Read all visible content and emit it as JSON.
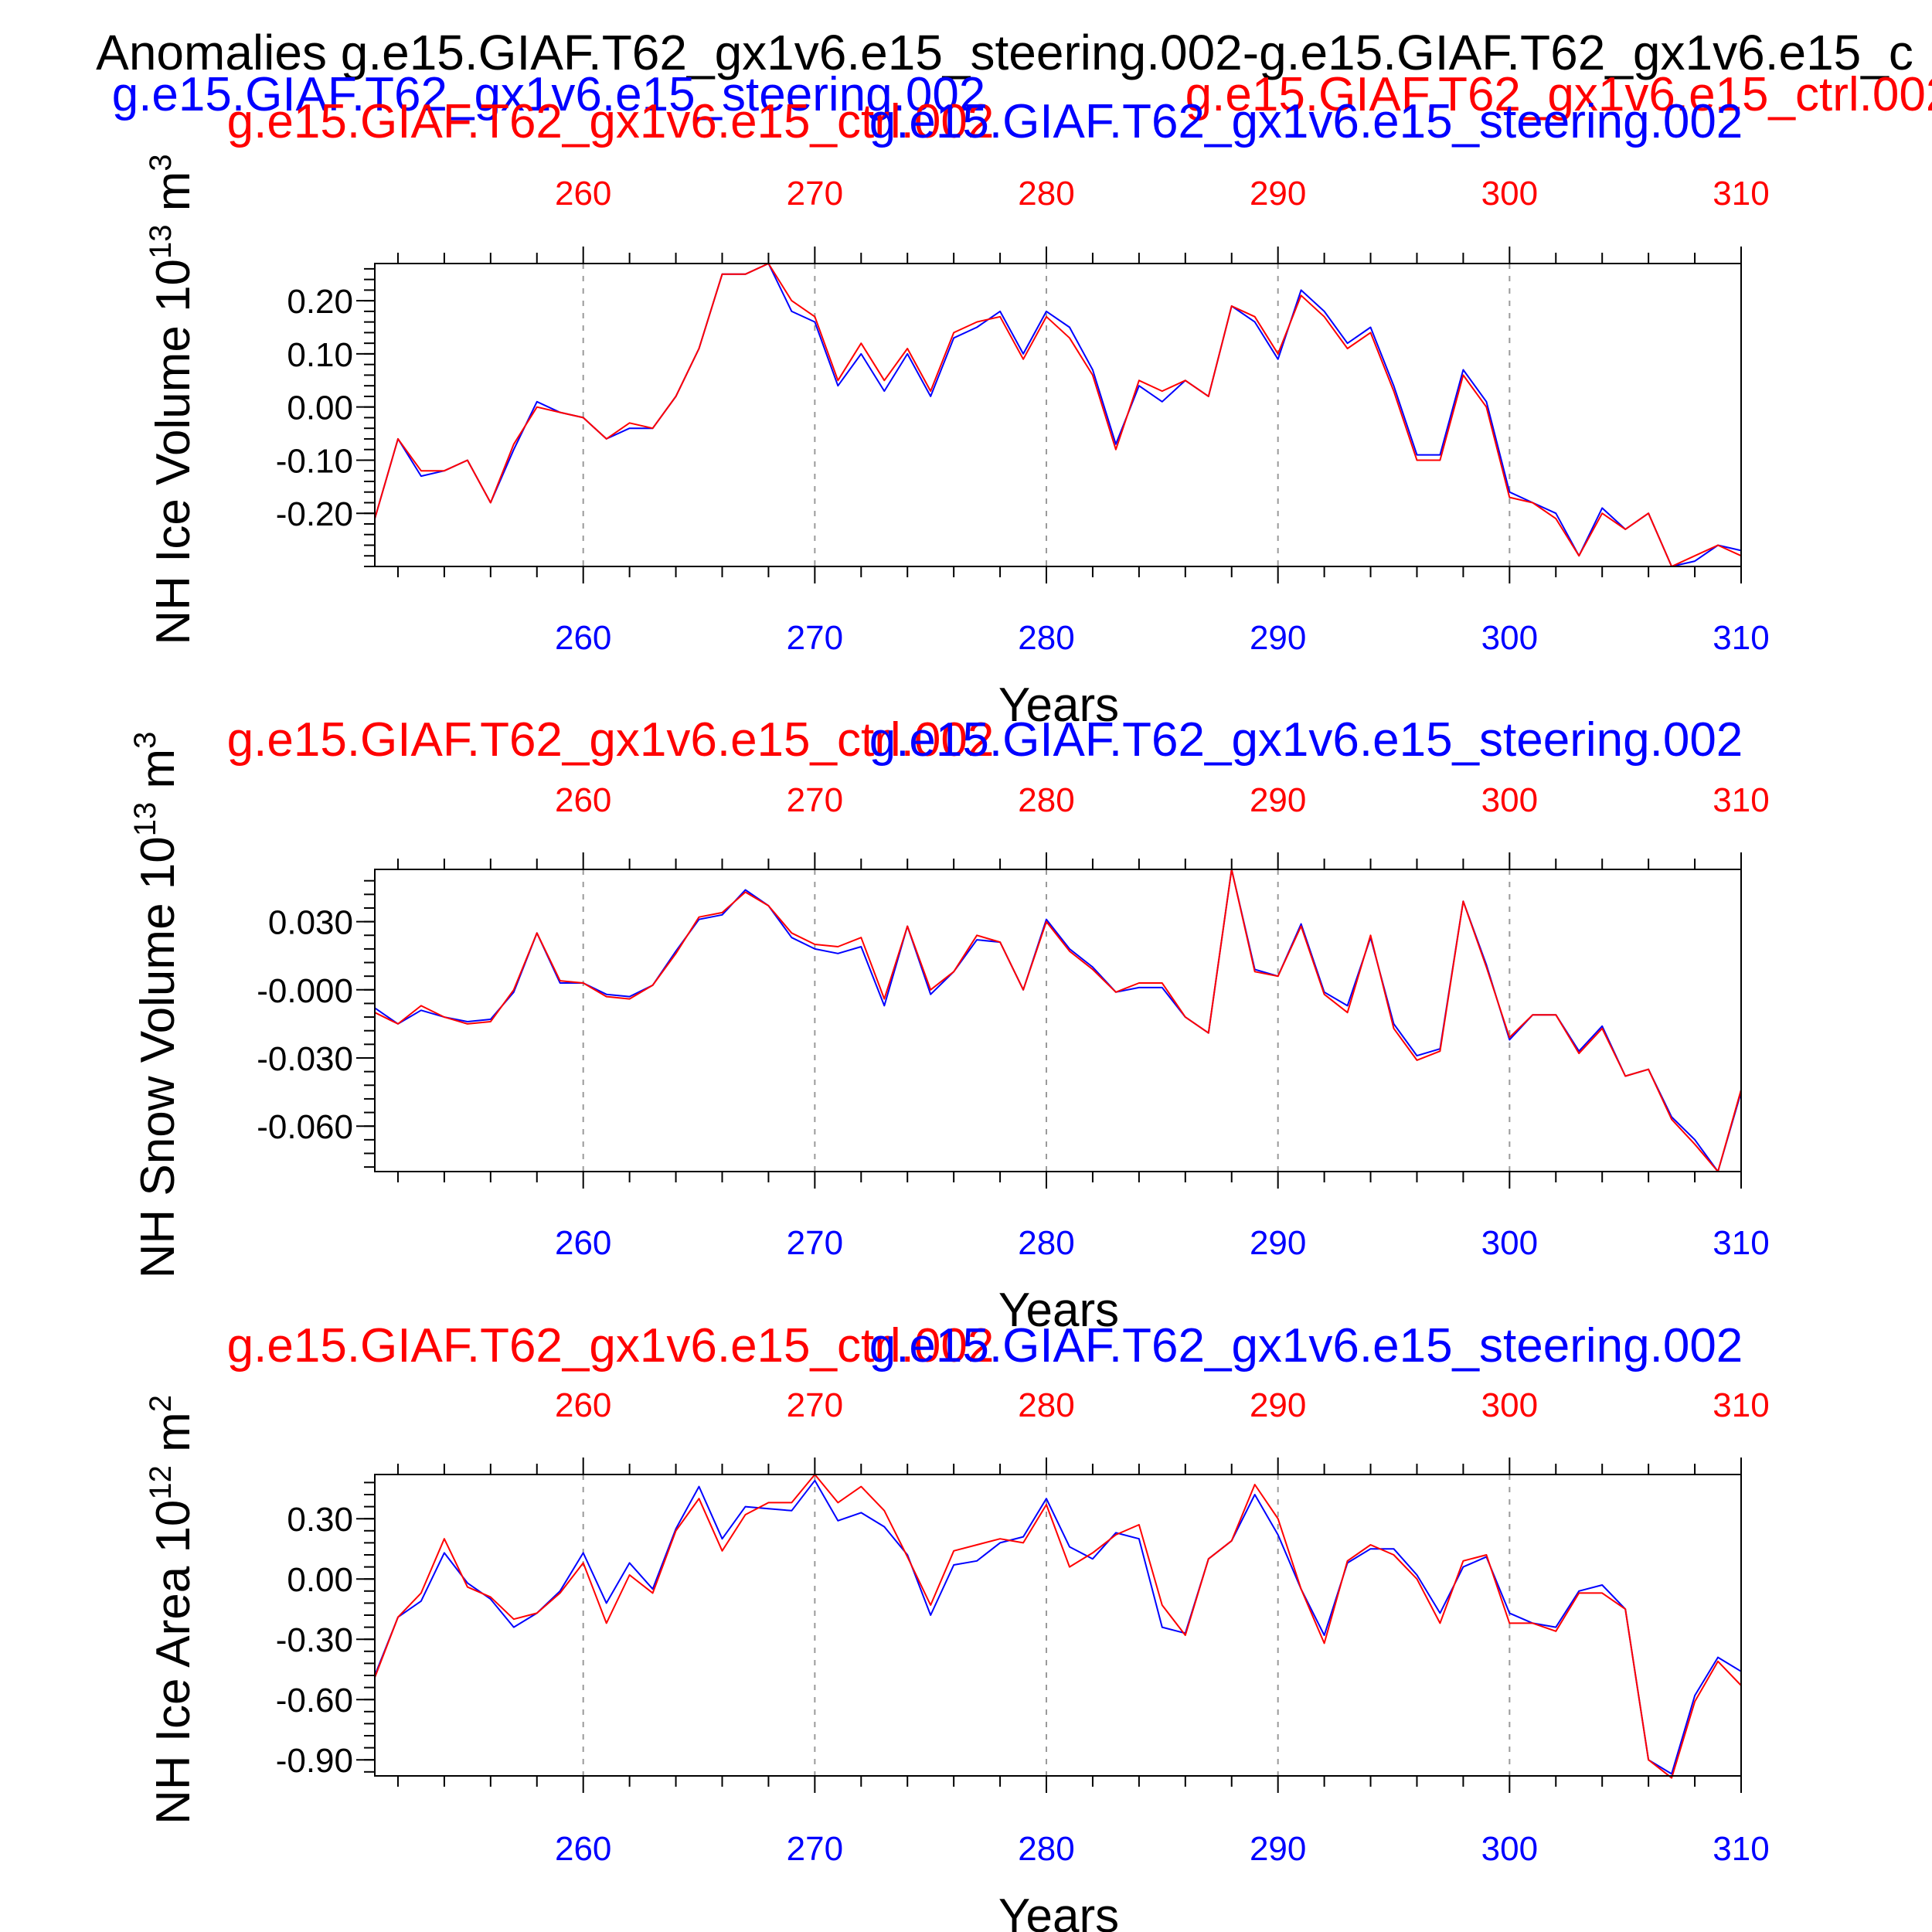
{
  "chart_data": {
    "title": "Anomalies g.e15.GIAF.T62_gx1v6.e15_steering.002-g.e15.GIAF.T62_gx1v6.e15_c",
    "legend": {
      "steering": "g.e15.GIAF.T62_gx1v6.e15_steering.002",
      "ctrl": "g.e15.GIAF.T62_gx1v6.e15_ctrl.002"
    },
    "colors": {
      "steering": "#0000ff",
      "ctrl": "#ff0000",
      "axes": "#000000",
      "grid": "#9a9a9a"
    },
    "panels": [
      {
        "type": "line",
        "ylabel": "NH Ice Volume 10",
        "ylabel_exp": "13",
        "ylabel_unit": " m",
        "ylabel_unit_exp": "3",
        "xlabel": "Years",
        "top_label_ctrl": "g.e15.GIAF.T62_gx1v6.e15_ctrl.002",
        "top_label_steering": "g.e15.GIAF.T62_gx1v6.e15_steering.002",
        "xlim": [
          251,
          310
        ],
        "ylim": [
          -0.3,
          0.27
        ],
        "yticks": [
          {
            "v": 0.2,
            "label": "0.20"
          },
          {
            "v": 0.1,
            "label": "0.10"
          },
          {
            "v": 0.0,
            "label": "0.00"
          },
          {
            "v": -0.1,
            "label": "-0.10"
          },
          {
            "v": -0.2,
            "label": "-0.20"
          }
        ],
        "yminor": 0.02,
        "x_top_ticks": [
          {
            "v": 260,
            "label": "260"
          },
          {
            "v": 270,
            "label": "270"
          },
          {
            "v": 280,
            "label": "280"
          },
          {
            "v": 290,
            "label": "290"
          },
          {
            "v": 300,
            "label": "300"
          },
          {
            "v": 310,
            "label": "310"
          }
        ],
        "x_bottom_ticks": [
          {
            "v": 260,
            "label": "260"
          },
          {
            "v": 270,
            "label": "270"
          },
          {
            "v": 280,
            "label": "280"
          },
          {
            "v": 290,
            "label": "290"
          },
          {
            "v": 300,
            "label": "300"
          },
          {
            "v": 310,
            "label": "310"
          }
        ],
        "series": [
          {
            "name": "steering",
            "values": [
              -0.21,
              -0.06,
              -0.13,
              -0.12,
              -0.1,
              -0.18,
              -0.08,
              0.01,
              -0.01,
              -0.02,
              -0.06,
              -0.04,
              -0.04,
              0.02,
              0.11,
              0.25,
              0.25,
              0.27,
              0.18,
              0.16,
              0.04,
              0.1,
              0.03,
              0.1,
              0.02,
              0.13,
              0.15,
              0.18,
              0.1,
              0.18,
              0.15,
              0.07,
              -0.07,
              0.04,
              0.01,
              0.05,
              0.02,
              0.19,
              0.16,
              0.09,
              0.22,
              0.18,
              0.12,
              0.15,
              0.04,
              -0.09,
              -0.09,
              0.07,
              0.01,
              -0.16,
              -0.18,
              -0.2,
              -0.28,
              -0.19,
              -0.23,
              -0.2,
              -0.3,
              -0.29,
              -0.26,
              -0.27
            ]
          },
          {
            "name": "ctrl",
            "values": [
              -0.21,
              -0.06,
              -0.12,
              -0.12,
              -0.1,
              -0.18,
              -0.07,
              0.0,
              -0.01,
              -0.02,
              -0.06,
              -0.03,
              -0.04,
              0.02,
              0.11,
              0.25,
              0.25,
              0.27,
              0.2,
              0.17,
              0.05,
              0.12,
              0.05,
              0.11,
              0.03,
              0.14,
              0.16,
              0.17,
              0.09,
              0.17,
              0.13,
              0.06,
              -0.08,
              0.05,
              0.03,
              0.05,
              0.02,
              0.19,
              0.17,
              0.1,
              0.21,
              0.17,
              0.11,
              0.14,
              0.03,
              -0.1,
              -0.1,
              0.06,
              0.0,
              -0.17,
              -0.18,
              -0.21,
              -0.28,
              -0.2,
              -0.23,
              -0.2,
              -0.3,
              -0.28,
              -0.26,
              -0.28
            ]
          }
        ]
      },
      {
        "type": "line",
        "ylabel": "NH Snow Volume 10",
        "ylabel_exp": "13",
        "ylabel_unit": " m",
        "ylabel_unit_exp": "3",
        "xlabel": "Years",
        "top_label_ctrl": "g.e15.GIAF.T62_gx1v6.e15_ctrl.002",
        "top_label_steering": "g.e15.GIAF.T62_gx1v6.e15_steering.002",
        "xlim": [
          251,
          310
        ],
        "ylim": [
          -0.08,
          0.053
        ],
        "yticks": [
          {
            "v": 0.03,
            "label": "0.030"
          },
          {
            "v": 0.0,
            "label": "-0.000"
          },
          {
            "v": -0.03,
            "label": "-0.030"
          },
          {
            "v": -0.06,
            "label": "-0.060"
          }
        ],
        "yminor": 0.006,
        "x_top_ticks": [
          {
            "v": 260,
            "label": "260"
          },
          {
            "v": 270,
            "label": "270"
          },
          {
            "v": 280,
            "label": "280"
          },
          {
            "v": 290,
            "label": "290"
          },
          {
            "v": 300,
            "label": "300"
          },
          {
            "v": 310,
            "label": "310"
          }
        ],
        "x_bottom_ticks": [
          {
            "v": 260,
            "label": "260"
          },
          {
            "v": 270,
            "label": "270"
          },
          {
            "v": 280,
            "label": "280"
          },
          {
            "v": 290,
            "label": "290"
          },
          {
            "v": 300,
            "label": "300"
          },
          {
            "v": 310,
            "label": "310"
          }
        ],
        "series": [
          {
            "name": "steering",
            "values": [
              -0.008,
              -0.015,
              -0.009,
              -0.012,
              -0.014,
              -0.013,
              -0.001,
              0.025,
              0.003,
              0.003,
              -0.002,
              -0.003,
              0.002,
              0.017,
              0.031,
              0.033,
              0.044,
              0.037,
              0.023,
              0.018,
              0.016,
              0.019,
              -0.007,
              0.028,
              -0.002,
              0.008,
              0.022,
              0.021,
              0.0,
              0.031,
              0.018,
              0.01,
              -0.001,
              0.001,
              0.001,
              -0.012,
              -0.019,
              0.053,
              0.009,
              0.006,
              0.029,
              -0.001,
              -0.007,
              0.023,
              -0.015,
              -0.029,
              -0.026,
              0.039,
              0.011,
              -0.022,
              -0.011,
              -0.011,
              -0.027,
              -0.016,
              -0.038,
              -0.035,
              -0.056,
              -0.066,
              -0.08,
              -0.045
            ]
          },
          {
            "name": "ctrl",
            "values": [
              -0.01,
              -0.015,
              -0.007,
              -0.012,
              -0.015,
              -0.014,
              0.0,
              0.025,
              0.004,
              0.003,
              -0.003,
              -0.004,
              0.002,
              0.016,
              0.032,
              0.034,
              0.043,
              0.037,
              0.025,
              0.02,
              0.019,
              0.023,
              -0.004,
              0.028,
              0.0,
              0.008,
              0.024,
              0.021,
              0.0,
              0.03,
              0.017,
              0.009,
              -0.001,
              0.003,
              0.003,
              -0.012,
              -0.019,
              0.053,
              0.008,
              0.006,
              0.028,
              -0.002,
              -0.01,
              0.024,
              -0.017,
              -0.031,
              -0.027,
              0.039,
              0.01,
              -0.021,
              -0.011,
              -0.011,
              -0.028,
              -0.017,
              -0.038,
              -0.035,
              -0.057,
              -0.068,
              -0.08,
              -0.044
            ]
          }
        ]
      },
      {
        "type": "line",
        "ylabel": "NH Ice Area 10",
        "ylabel_exp": "12",
        "ylabel_unit": " m",
        "ylabel_unit_exp": "2",
        "xlabel": "Years",
        "top_label_ctrl": "g.e15.GIAF.T62_gx1v6.e15_ctrl.002",
        "top_label_steering": "g.e15.GIAF.T62_gx1v6.e15_steering.002",
        "xlim": [
          251,
          310
        ],
        "ylim": [
          -0.98,
          0.52
        ],
        "yticks": [
          {
            "v": 0.3,
            "label": "0.30"
          },
          {
            "v": 0.0,
            "label": "0.00"
          },
          {
            "v": -0.3,
            "label": "-0.30"
          },
          {
            "v": -0.6,
            "label": "-0.60"
          },
          {
            "v": -0.9,
            "label": "-0.90"
          }
        ],
        "yminor": 0.06,
        "x_top_ticks": [
          {
            "v": 260,
            "label": "260"
          },
          {
            "v": 270,
            "label": "270"
          },
          {
            "v": 280,
            "label": "280"
          },
          {
            "v": 290,
            "label": "290"
          },
          {
            "v": 300,
            "label": "300"
          },
          {
            "v": 310,
            "label": "310"
          }
        ],
        "x_bottom_ticks": [
          {
            "v": 260,
            "label": "260"
          },
          {
            "v": 270,
            "label": "270"
          },
          {
            "v": 280,
            "label": "280"
          },
          {
            "v": 290,
            "label": "290"
          },
          {
            "v": 300,
            "label": "300"
          },
          {
            "v": 310,
            "label": "310"
          }
        ],
        "series": [
          {
            "name": "steering",
            "values": [
              -0.48,
              -0.19,
              -0.11,
              0.13,
              -0.02,
              -0.1,
              -0.24,
              -0.17,
              -0.06,
              0.13,
              -0.12,
              0.08,
              -0.05,
              0.25,
              0.46,
              0.2,
              0.36,
              0.35,
              0.34,
              0.49,
              0.29,
              0.33,
              0.26,
              0.12,
              -0.18,
              0.07,
              0.09,
              0.18,
              0.21,
              0.4,
              0.16,
              0.1,
              0.23,
              0.2,
              -0.24,
              -0.27,
              0.1,
              0.19,
              0.42,
              0.22,
              -0.05,
              -0.28,
              0.08,
              0.15,
              0.15,
              0.02,
              -0.17,
              0.06,
              0.11,
              -0.17,
              -0.22,
              -0.24,
              -0.06,
              -0.03,
              -0.15,
              -0.9,
              -0.97,
              -0.58,
              -0.39,
              -0.46
            ]
          },
          {
            "name": "ctrl",
            "values": [
              -0.49,
              -0.19,
              -0.07,
              0.2,
              -0.04,
              -0.09,
              -0.2,
              -0.17,
              -0.07,
              0.08,
              -0.22,
              0.02,
              -0.07,
              0.24,
              0.4,
              0.14,
              0.32,
              0.38,
              0.38,
              0.52,
              0.38,
              0.46,
              0.34,
              0.11,
              -0.13,
              0.14,
              0.17,
              0.2,
              0.18,
              0.37,
              0.06,
              0.13,
              0.22,
              0.27,
              -0.13,
              -0.28,
              0.1,
              0.19,
              0.47,
              0.3,
              -0.05,
              -0.32,
              0.09,
              0.17,
              0.12,
              0.0,
              -0.22,
              0.09,
              0.12,
              -0.22,
              -0.22,
              -0.26,
              -0.07,
              -0.07,
              -0.15,
              -0.9,
              -0.99,
              -0.61,
              -0.41,
              -0.53
            ]
          }
        ]
      }
    ]
  }
}
